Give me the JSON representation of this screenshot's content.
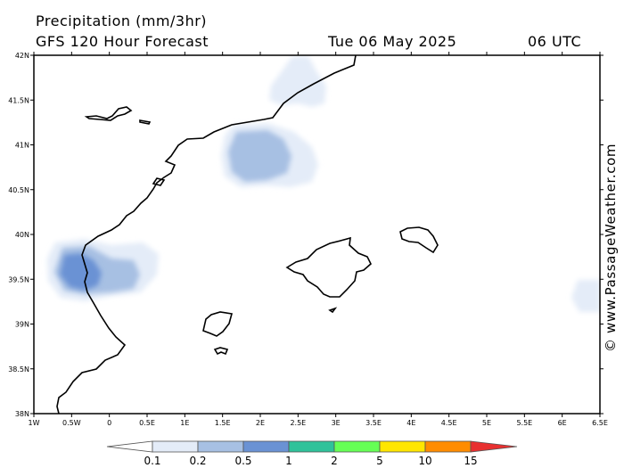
{
  "header": {
    "title": "Precipitation (mm/3hr)",
    "subtitle": "GFS 120 Hour Forecast",
    "valid_date": "Tue 06 May 2025",
    "valid_time": "06 UTC"
  },
  "axes": {
    "latitude_labels": [
      "42N",
      "41.5N",
      "41N",
      "40.5N",
      "40N",
      "39.5N",
      "39N",
      "38.5N",
      "38N"
    ],
    "longitude_labels": [
      "1W",
      "0.5W",
      "0",
      "0.5E",
      "1E",
      "1.5E",
      "2E",
      "2.5E",
      "3E",
      "3.5E",
      "4E",
      "4.5E",
      "5E",
      "5.5E",
      "6E",
      "6.5E"
    ]
  },
  "watermark": "© www.PassageWeather.com",
  "legend": {
    "labels": [
      "0.1",
      "0.2",
      "0.5",
      "1",
      "2",
      "5",
      "10",
      "15"
    ],
    "colors": [
      "#ffffff",
      "#e4ecf8",
      "#a7c0e3",
      "#6a92d4",
      "#2fc29a",
      "#66ff55",
      "#ffe600",
      "#ff8c00",
      "#e83030"
    ]
  }
}
